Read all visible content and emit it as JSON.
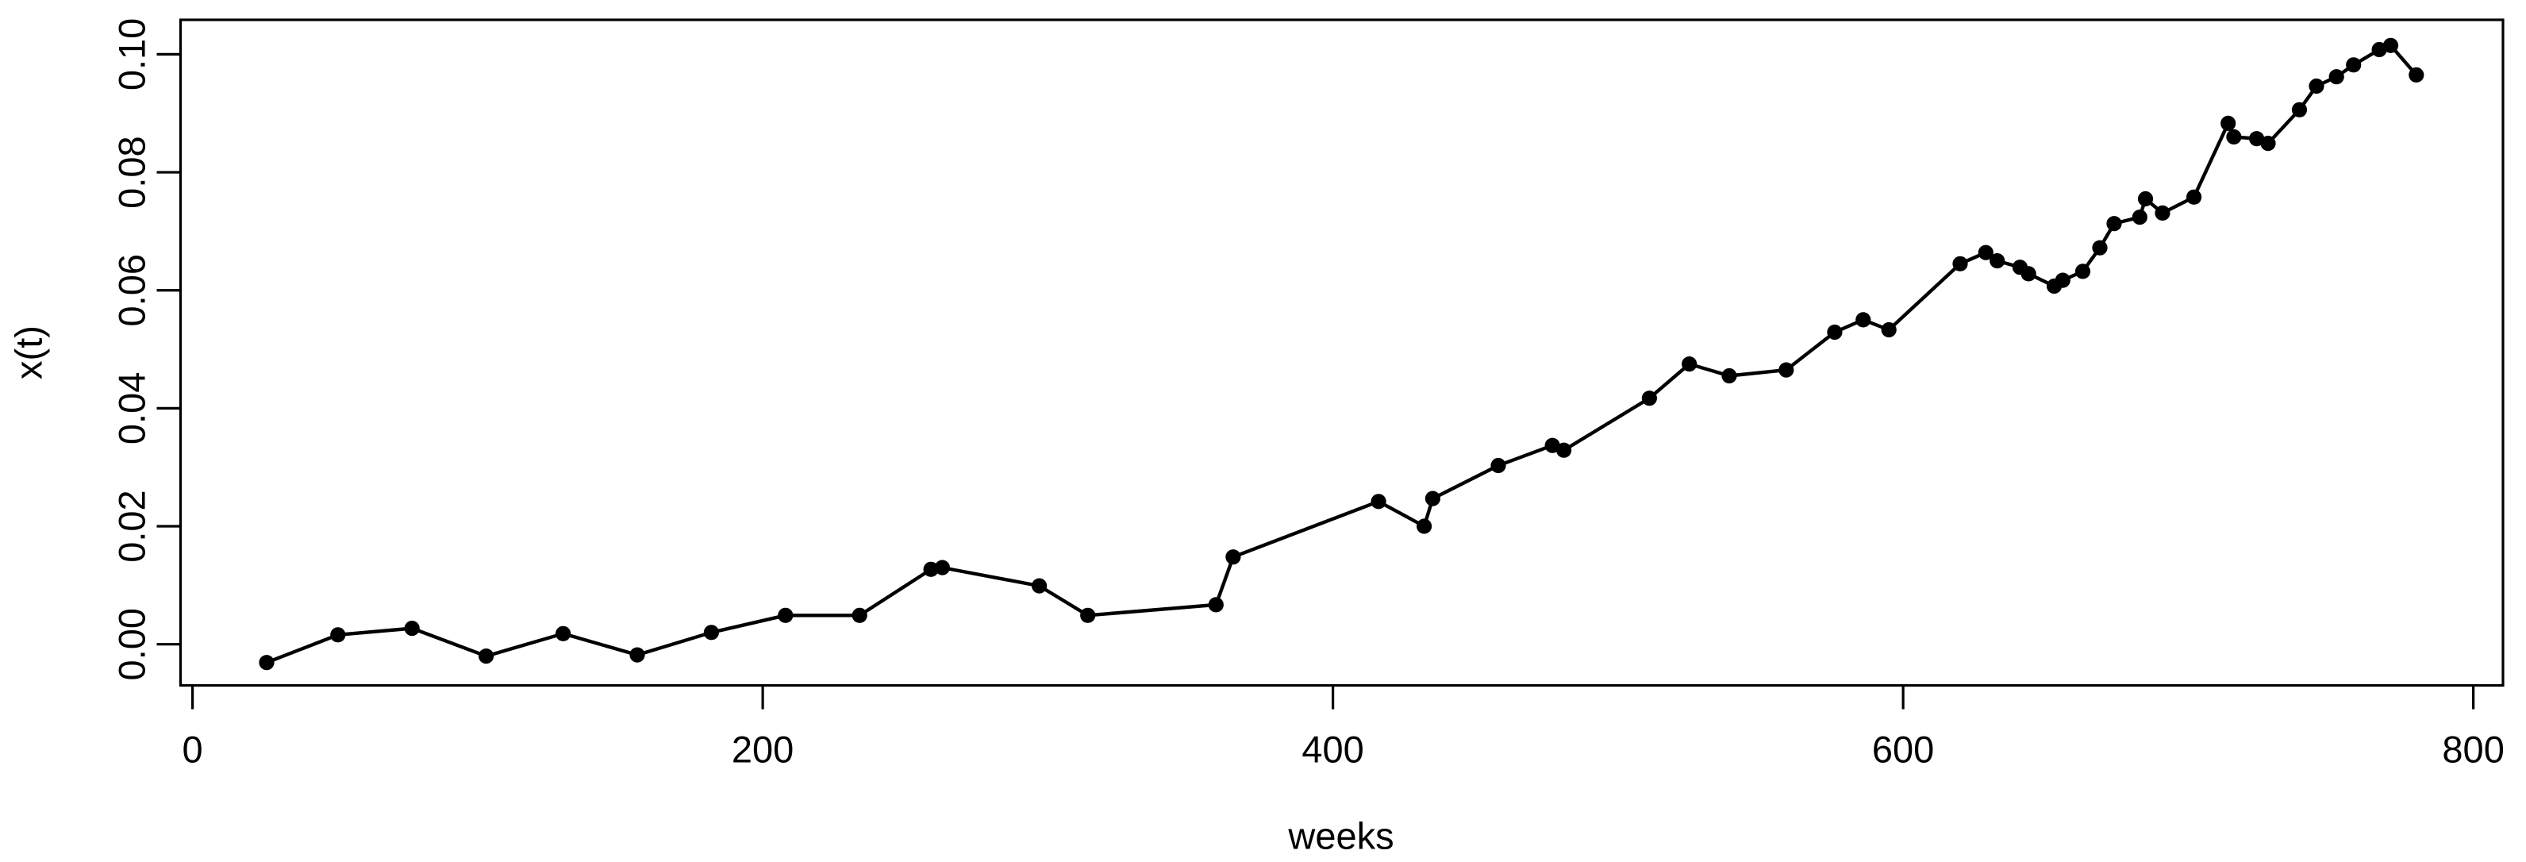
{
  "figure": {
    "background_color": "#ffffff",
    "foreground_color": "#000000"
  },
  "chart_data": {
    "type": "line",
    "title": "",
    "xlabel": "weeks",
    "ylabel": "x(t)",
    "legend": null,
    "grid": false,
    "marker": "filled-circle",
    "line_color": "#000000",
    "point_color": "#000000",
    "xlim": [
      -4.2,
      810.4
    ],
    "ylim": [
      -0.00697,
      0.10584
    ],
    "x_ticks": {
      "values": [
        0,
        200,
        400,
        600,
        800
      ],
      "labels": [
        "0",
        "200",
        "400",
        "600",
        "800"
      ]
    },
    "y_ticks": {
      "values": [
        0.0,
        0.02,
        0.04,
        0.06,
        0.08,
        0.1
      ],
      "labels": [
        "0.00",
        "0.02",
        "0.04",
        "0.06",
        "0.08",
        "0.10"
      ]
    },
    "x": [
      26,
      51,
      77,
      103,
      130,
      156,
      182,
      208,
      234,
      259,
      263,
      297,
      314,
      359,
      365,
      416,
      432,
      435,
      458,
      477,
      481,
      511,
      525,
      539,
      559,
      576,
      586,
      595,
      620,
      629,
      633,
      641,
      644,
      653,
      656,
      663,
      669,
      674,
      683,
      685,
      691,
      702,
      714,
      716,
      724,
      728,
      739,
      745,
      752,
      758,
      767,
      771,
      780
    ],
    "y": [
      -0.0031,
      0.0016,
      0.0027,
      -0.002,
      0.0018,
      -0.0018,
      0.002,
      0.0049,
      0.0049,
      0.0127,
      0.013,
      0.0099,
      0.0049,
      0.0067,
      0.0148,
      0.0242,
      0.02,
      0.0247,
      0.0303,
      0.0337,
      0.0329,
      0.0417,
      0.0475,
      0.0455,
      0.0465,
      0.0529,
      0.055,
      0.0533,
      0.0645,
      0.0664,
      0.065,
      0.0639,
      0.0628,
      0.0607,
      0.0617,
      0.0632,
      0.0672,
      0.0713,
      0.0724,
      0.0755,
      0.0731,
      0.0758,
      0.0883,
      0.086,
      0.0857,
      0.0849,
      0.0906,
      0.0946,
      0.0962,
      0.0982,
      0.1008,
      0.1015,
      0.0965
    ]
  }
}
